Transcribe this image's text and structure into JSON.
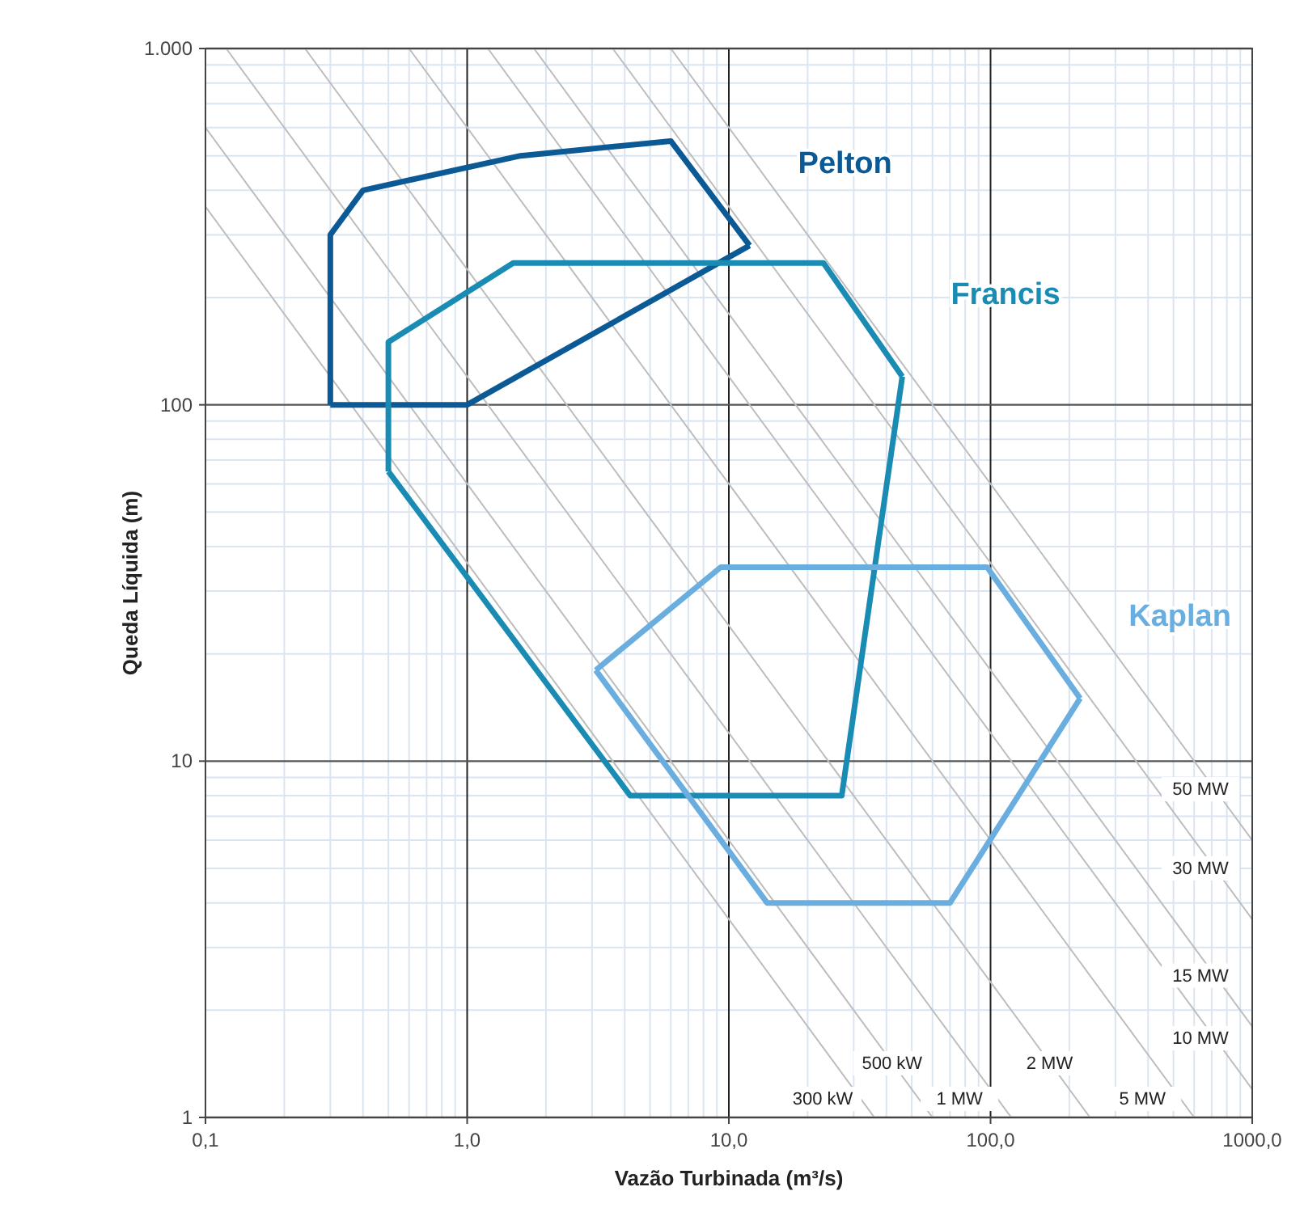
{
  "chart_data": {
    "type": "line",
    "xlabel": "Vazão Turbinada (m³/s)",
    "ylabel": "Queda Líquida (m)",
    "log": "xy",
    "grid": true,
    "legend": false,
    "marker": "none",
    "line_style": "solid",
    "xlim": [
      0.1,
      1000
    ],
    "ylim": [
      1,
      1000
    ],
    "xticks": [
      {
        "value": 0.1,
        "label": "0,1"
      },
      {
        "value": 1,
        "label": "1,0"
      },
      {
        "value": 10,
        "label": "10,0"
      },
      {
        "value": 100,
        "label": "100,0"
      },
      {
        "value": 1000,
        "label": "1000,0"
      }
    ],
    "yticks": [
      1,
      10,
      100,
      {
        "value": 1000,
        "label": "1.000"
      }
    ],
    "series": [
      {
        "name": "300 kW",
        "color": "#bdbdbd",
        "x": [
          0.1,
          36
        ],
        "values": [
          360,
          1
        ]
      },
      {
        "name": "500 kW",
        "color": "#bdbdbd",
        "x": [
          0.1,
          60
        ],
        "values": [
          600,
          1
        ]
      },
      {
        "name": "1 MW",
        "color": "#bdbdbd",
        "x": [
          0.12,
          120
        ],
        "values": [
          1000,
          1
        ]
      },
      {
        "name": "2 MW",
        "color": "#bdbdbd",
        "x": [
          0.24,
          240
        ],
        "values": [
          1000,
          1
        ]
      },
      {
        "name": "5 MW",
        "color": "#bdbdbd",
        "x": [
          0.6,
          600
        ],
        "values": [
          1000,
          1
        ]
      },
      {
        "name": "10 MW",
        "color": "#bdbdbd",
        "x": [
          1.2,
          1000
        ],
        "values": [
          1000,
          1.2
        ]
      },
      {
        "name": "15 MW",
        "color": "#bdbdbd",
        "x": [
          1.8,
          1000
        ],
        "values": [
          1000,
          1.8
        ]
      },
      {
        "name": "30 MW",
        "color": "#bdbdbd",
        "x": [
          3.6,
          1000
        ],
        "values": [
          1000,
          3.6
        ]
      },
      {
        "name": "50 MW",
        "color": "#bdbdbd",
        "x": [
          6,
          1000
        ],
        "values": [
          1000,
          6
        ]
      },
      {
        "name": "Pelton",
        "color": "#0b5a96",
        "x": [
          0.3,
          0.3,
          0.4,
          1.6,
          6,
          12
        ],
        "values": [
          100,
          300,
          400,
          500,
          550,
          280
        ]
      },
      {
        "color": "#0b5a96",
        "x": [
          0.3,
          1,
          12
        ],
        "values": [
          100,
          100,
          280
        ]
      },
      {
        "name": "Francis",
        "color": "#1a8cb4",
        "x": [
          0.5,
          0.5,
          1.5,
          23,
          46
        ],
        "values": [
          65,
          150,
          250,
          250,
          120
        ]
      },
      {
        "color": "#1a8cb4",
        "x": [
          0.5,
          4.2,
          27,
          46
        ],
        "values": [
          65,
          8,
          8,
          120
        ]
      },
      {
        "name": "Kaplan",
        "color": "#6aaee0",
        "x": [
          3.1,
          9.3,
          97,
          220
        ],
        "values": [
          18,
          35,
          35,
          15
        ]
      },
      {
        "color": "#6aaee0",
        "x": [
          3.1,
          14,
          70,
          220
        ],
        "values": [
          18,
          4,
          4,
          15
        ]
      }
    ]
  }
}
